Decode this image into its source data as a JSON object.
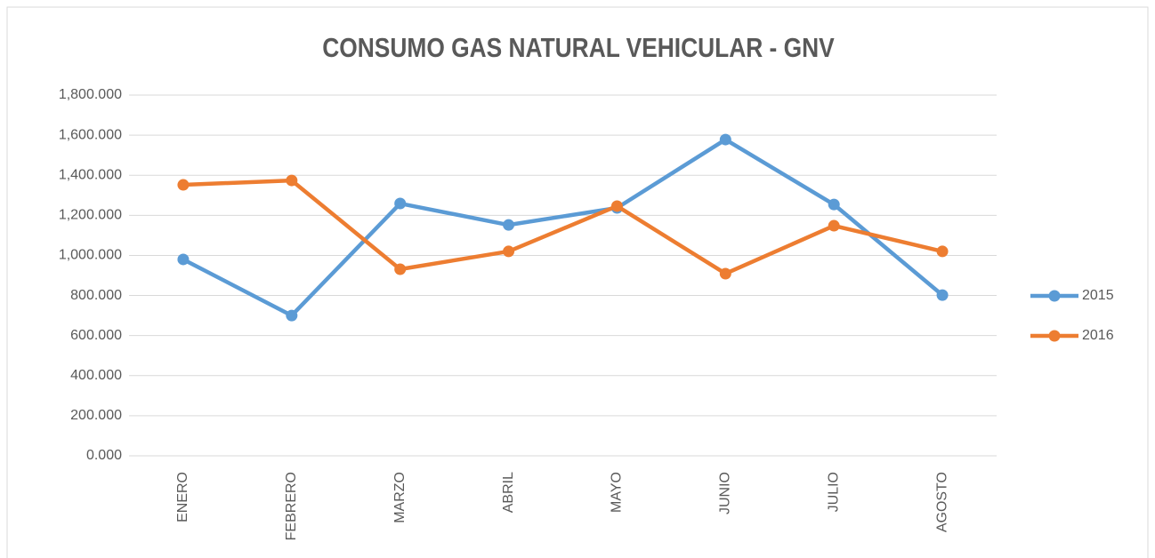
{
  "chart_data": {
    "type": "line",
    "title": "CONSUMO GAS NATURAL VEHICULAR - GNV",
    "categories": [
      "ENERO",
      "FEBRERO",
      "MARZO",
      "ABRIL",
      "MAYO",
      "JUNIO",
      "JULIO",
      "AGOSTO"
    ],
    "series": [
      {
        "name": "2015",
        "color": "#5b9bd5",
        "values": [
          980,
          700,
          1259,
          1152,
          1237,
          1578,
          1254,
          802
        ]
      },
      {
        "name": "2016",
        "color": "#ed7d31",
        "values": [
          1352,
          1374,
          931,
          1020,
          1246,
          909,
          1148,
          1020
        ]
      }
    ],
    "ylim": [
      0,
      1800
    ],
    "yticks": [
      {
        "value": 0,
        "label": "0.000"
      },
      {
        "value": 200,
        "label": "200.000"
      },
      {
        "value": 400,
        "label": "400.000"
      },
      {
        "value": 600,
        "label": "600.000"
      },
      {
        "value": 800,
        "label": "800.000"
      },
      {
        "value": 1000,
        "label": "1,000.000"
      },
      {
        "value": 1200,
        "label": "1,200.000"
      },
      {
        "value": 1400,
        "label": "1,400.000"
      },
      {
        "value": 1600,
        "label": "1,600.000"
      },
      {
        "value": 1800,
        "label": "1,800.000"
      }
    ],
    "grid": true,
    "legend": "right"
  }
}
